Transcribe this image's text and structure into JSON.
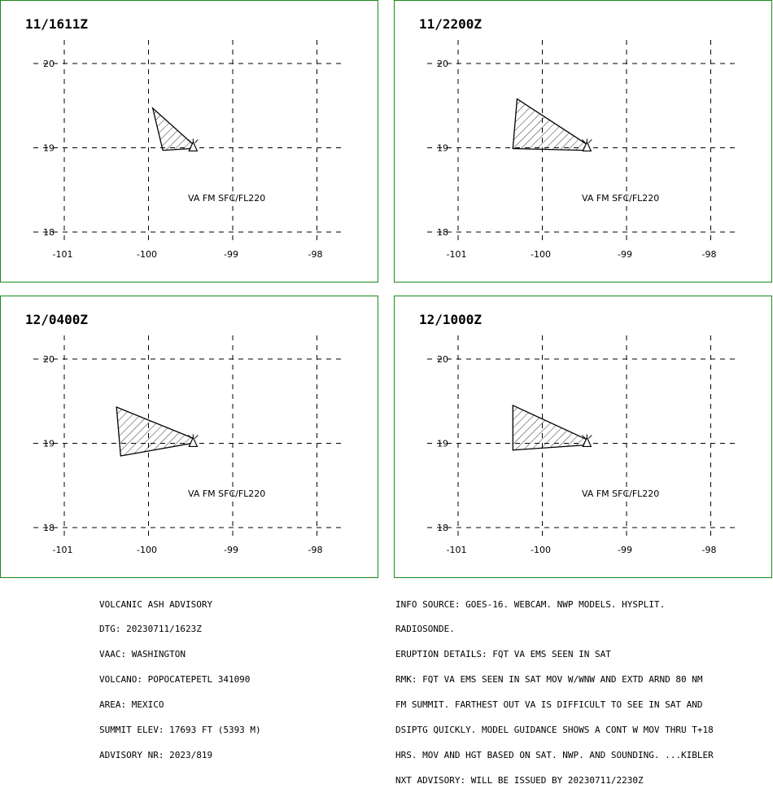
{
  "panels": [
    {
      "time": "11/1611Z",
      "label": "VA FM SFC/FL220",
      "polygon": [
        [
          -99.95,
          19.47
        ],
        [
          -99.83,
          18.97
        ],
        [
          -99.49,
          18.99
        ],
        [
          -99.47,
          19.04
        ]
      ]
    },
    {
      "time": "11/2200Z",
      "label": "VA FM SFC/FL220",
      "polygon": [
        [
          -100.3,
          19.58
        ],
        [
          -100.35,
          18.99
        ],
        [
          -99.5,
          18.97
        ],
        [
          -99.47,
          19.04
        ]
      ]
    },
    {
      "time": "12/0400Z",
      "label": "VA FM SFC/FL220",
      "polygon": [
        [
          -100.38,
          19.43
        ],
        [
          -100.33,
          18.85
        ],
        [
          -99.49,
          19.0
        ],
        [
          -99.47,
          19.06
        ]
      ]
    },
    {
      "time": "12/1000Z",
      "label": "VA FM SFC/FL220",
      "polygon": [
        [
          -100.35,
          19.45
        ],
        [
          -100.35,
          18.92
        ],
        [
          -99.49,
          18.98
        ],
        [
          -99.46,
          19.04
        ]
      ]
    }
  ],
  "axes": {
    "lon_ticks": [
      "-101",
      "-100",
      "-99",
      "-98"
    ],
    "lat_ticks": [
      "20",
      "19",
      "18"
    ]
  },
  "volcano": {
    "lon": -99.47,
    "lat": 19.02
  },
  "advisory_left": [
    "VOLCANIC ASH ADVISORY",
    "DTG: 20230711/1623Z",
    "VAAC: WASHINGTON",
    "VOLCANO: POPOCATEPETL 341090",
    "AREA: MEXICO",
    "SUMMIT ELEV: 17693 FT (5393 M)",
    "ADVISORY NR: 2023/819"
  ],
  "advisory_right": [
    "INFO SOURCE: GOES-16. WEBCAM. NWP MODELS. HYSPLIT.",
    "RADIOSONDE.",
    "ERUPTION DETAILS: FQT VA EMS SEEN IN SAT",
    "RMK: FQT VA EMS SEEN IN SAT MOV W/WNW AND EXTD ARND 80 NM",
    "FM SUMMIT. FARTHEST OUT VA IS DIFFICULT TO SEE IN SAT AND",
    "DSIPTG QUICKLY. MODEL GUIDANCE SHOWS A CONT W MOV THRU T+18",
    "HRS. MOV AND HGT BASED ON SAT. NWP. AND SOUNDING. ...KIBLER",
    "NXT ADVISORY: WILL BE ISSUED BY 20230711/2230Z"
  ]
}
